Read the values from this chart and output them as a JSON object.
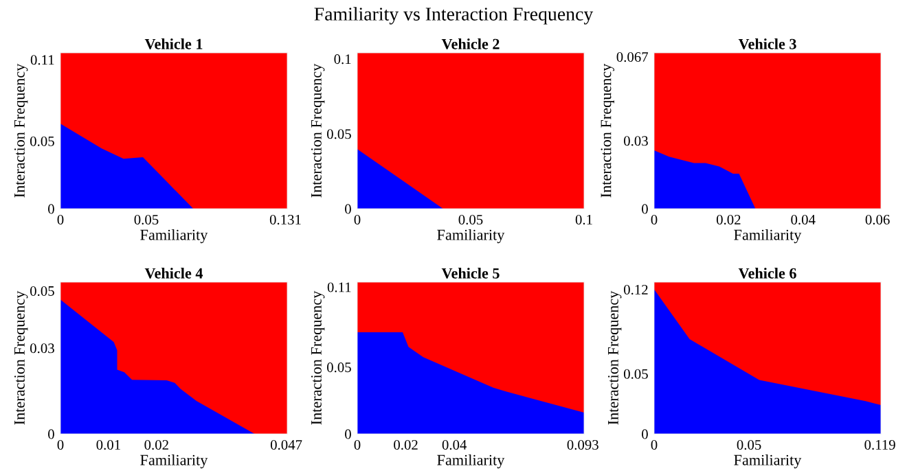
{
  "chart_data": [
    {
      "type": "other",
      "title": "Familiarity vs Interaction Frequency"
    },
    {
      "type": "area",
      "title": "Vehicle 1",
      "xlabel": "Familiarity",
      "ylabel": "Interaction Frequency",
      "x": [
        0,
        0.024,
        0.0367,
        0.048,
        0.0773,
        0.132
      ],
      "series": [
        {
          "color": "#0000ff",
          "values": [
            0.0627,
            0.0444,
            0.0368,
            0.038,
            0,
            0
          ]
        }
      ],
      "bands": [
        {
          "axis": "y",
          "from": 0,
          "to": 0.115,
          "color": "#ff0000"
        }
      ],
      "xlim": [
        0,
        0.132
      ],
      "ylim": [
        0,
        0.115
      ],
      "xticks": [
        0,
        0.05,
        0.131
      ],
      "yticks": [
        0,
        0.05,
        0.11
      ],
      "grid": false
    },
    {
      "type": "area",
      "title": "Vehicle 2",
      "xlabel": "Familiarity",
      "ylabel": "Interaction Frequency",
      "x": [
        0,
        0.0378,
        0.1
      ],
      "series": [
        {
          "color": "#0000ff",
          "values": [
            0.0398,
            0,
            0
          ]
        }
      ],
      "bands": [
        {
          "axis": "y",
          "from": 0,
          "to": 0.104,
          "color": "#ff0000"
        }
      ],
      "xlim": [
        0,
        0.1
      ],
      "ylim": [
        0,
        0.104
      ],
      "xticks": [
        0,
        0.05,
        0.1
      ],
      "yticks": [
        0,
        0.05,
        0.1
      ],
      "grid": false
    },
    {
      "type": "area",
      "title": "Vehicle 3",
      "xlabel": "Familiarity",
      "ylabel": "Interaction Frequency",
      "x": [
        0,
        0.004,
        0.0107,
        0.0138,
        0.0175,
        0.0212,
        0.0228,
        0.0272,
        0.0609
      ],
      "series": [
        {
          "color": "#0000ff",
          "values": [
            0.0257,
            0.0229,
            0.0201,
            0.0201,
            0.0186,
            0.0154,
            0.0154,
            0,
            0
          ]
        }
      ],
      "bands": [
        {
          "axis": "y",
          "from": 0,
          "to": 0.0687,
          "color": "#ff0000"
        }
      ],
      "xlim": [
        0,
        0.0609
      ],
      "ylim": [
        0,
        0.0687
      ],
      "xticks": [
        0,
        0.02,
        0.04,
        0.06
      ],
      "yticks": [
        0,
        0.03,
        0.067
      ],
      "grid": false
    },
    {
      "type": "area",
      "title": "Vehicle 4",
      "xlabel": "Familiarity",
      "ylabel": "Interaction Frequency",
      "x": [
        0,
        0.0111,
        0.0118,
        0.0118,
        0.0133,
        0.0149,
        0.0221,
        0.0238,
        0.025,
        0.0283,
        0.0404,
        0.0472
      ],
      "series": [
        {
          "color": "#0000ff",
          "values": [
            0.0469,
            0.0321,
            0.0292,
            0.0224,
            0.0215,
            0.0189,
            0.0187,
            0.0178,
            0.0157,
            0.0115,
            0,
            0
          ]
        }
      ],
      "bands": [
        {
          "axis": "y",
          "from": 0,
          "to": 0.053,
          "color": "#ff0000"
        }
      ],
      "xlim": [
        0,
        0.0472
      ],
      "ylim": [
        0,
        0.053
      ],
      "xticks": [
        0,
        0.01,
        0.02,
        0.047
      ],
      "yticks": [
        0,
        0.03,
        0.05
      ],
      "grid": false
    },
    {
      "type": "area",
      "title": "Vehicle 5",
      "xlabel": "Familiarity",
      "ylabel": "Interaction Frequency",
      "x": [
        0,
        0.0187,
        0.0211,
        0.0272,
        0.0405,
        0.0561,
        0.0613,
        0.0935
      ],
      "series": [
        {
          "color": "#0000ff",
          "values": [
            0.0761,
            0.0761,
            0.0651,
            0.0575,
            0.0469,
            0.0346,
            0.0317,
            0.0159
          ]
        }
      ],
      "bands": [
        {
          "axis": "y",
          "from": 0,
          "to": 0.1136,
          "color": "#ff0000"
        }
      ],
      "xlim": [
        0,
        0.0935
      ],
      "ylim": [
        0,
        0.1136
      ],
      "xticks": [
        0,
        0.02,
        0.04,
        0.093
      ],
      "yticks": [
        0,
        0.05,
        0.11
      ],
      "grid": false
    },
    {
      "type": "area",
      "title": "Vehicle 6",
      "xlabel": "Familiarity",
      "ylabel": "Interaction Frequency",
      "x": [
        0,
        0.0187,
        0.0554,
        0.1114,
        0.1195
      ],
      "series": [
        {
          "color": "#0000ff",
          "values": [
            0.12,
            0.0787,
            0.0447,
            0.0272,
            0.024
          ]
        }
      ],
      "bands": [
        {
          "axis": "y",
          "from": 0,
          "to": 0.126,
          "color": "#ff0000"
        }
      ],
      "xlim": [
        0,
        0.1195
      ],
      "ylim": [
        0,
        0.126
      ],
      "xticks": [
        0,
        0.05,
        0.119
      ],
      "yticks": [
        0,
        0.05,
        0.12
      ],
      "grid": false
    }
  ]
}
